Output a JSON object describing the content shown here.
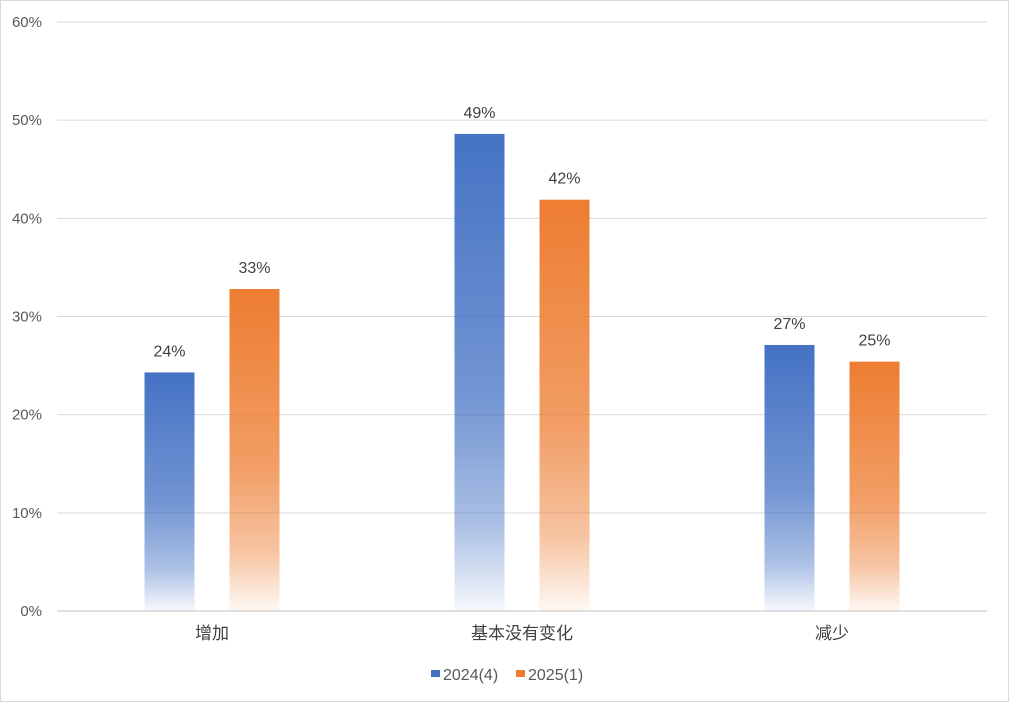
{
  "chart_data": {
    "type": "bar",
    "categories": [
      "增加",
      "基本没有变化",
      "减少"
    ],
    "series": [
      {
        "name": "2024(4)",
        "values": [
          24.3,
          48.6,
          27.1
        ],
        "labels": [
          "24%",
          "49%",
          "27%"
        ],
        "color": "#4472C4"
      },
      {
        "name": "2025(1)",
        "values": [
          32.8,
          41.9,
          25.4
        ],
        "labels": [
          "33%",
          "42%",
          "25%"
        ],
        "color": "#ED7D31"
      }
    ],
    "yticks": [
      "0%",
      "10%",
      "20%",
      "30%",
      "40%",
      "50%",
      "60%"
    ],
    "ylim": [
      0,
      60
    ],
    "title": "",
    "xlabel": "",
    "ylabel": "",
    "grid": true,
    "legend_position": "bottom"
  }
}
